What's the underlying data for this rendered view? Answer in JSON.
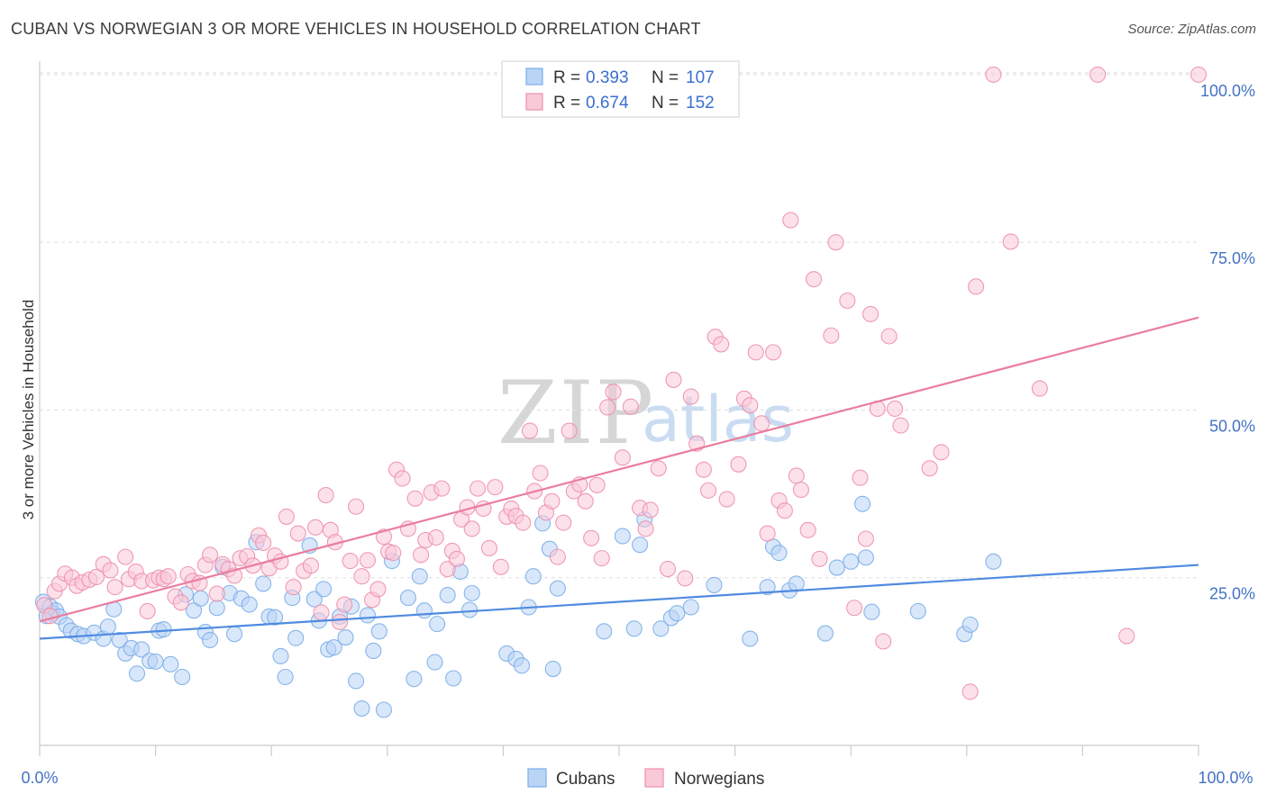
{
  "title": "CUBAN VS NORWEGIAN 3 OR MORE VEHICLES IN HOUSEHOLD CORRELATION CHART",
  "source": "Source: ZipAtlas.com",
  "watermark": {
    "zip": "ZIP",
    "atlas": "atlas"
  },
  "legend": {
    "r_label": "R =",
    "n_label": "N =",
    "entries": [
      {
        "name": "Cubans",
        "r": "0.393",
        "n": "107",
        "color": "#7baee8",
        "fill": "#b9d4f5"
      },
      {
        "name": "Norwegians",
        "r": "0.674",
        "n": "152",
        "color": "#ee8fab",
        "fill": "#f9c9d8"
      }
    ]
  },
  "chart_data": {
    "type": "scatter",
    "title": "CUBAN VS NORWEGIAN 3 OR MORE VEHICLES IN HOUSEHOLD CORRELATION CHART",
    "xlabel": "",
    "ylabel": "3 or more Vehicles in Household",
    "xlim": [
      0,
      100
    ],
    "ylim": [
      0,
      102
    ],
    "x_tick_labels": [
      "0.0%",
      "100.0%"
    ],
    "y_tick_labels": [
      "25.0%",
      "50.0%",
      "75.0%",
      "100.0%"
    ],
    "y_ticks": [
      25,
      50,
      75,
      100
    ],
    "series": [
      {
        "name": "Cubans",
        "color": "#4f8be0",
        "trend": {
          "x0": 0,
          "y0": 15.9,
          "x1": 100,
          "y1": 26.9
        },
        "points": [
          [
            0.3,
            21.4
          ],
          [
            0.6,
            19.3
          ],
          [
            0.9,
            20.7
          ],
          [
            1.1,
            19.7
          ],
          [
            1.4,
            20.1
          ],
          [
            1.7,
            19.2
          ],
          [
            2.3,
            17.9
          ],
          [
            2.7,
            17.1
          ],
          [
            3.3,
            16.6
          ],
          [
            3.8,
            16.3
          ],
          [
            4.7,
            16.8
          ],
          [
            5.5,
            15.9
          ],
          [
            5.9,
            17.7
          ],
          [
            6.4,
            20.3
          ],
          [
            6.9,
            15.7
          ],
          [
            7.4,
            13.7
          ],
          [
            7.9,
            14.5
          ],
          [
            8.4,
            10.7
          ],
          [
            8.8,
            14.3
          ],
          [
            9.5,
            12.6
          ],
          [
            10.0,
            12.5
          ],
          [
            10.3,
            17.1
          ],
          [
            10.7,
            17.3
          ],
          [
            11.3,
            12.1
          ],
          [
            12.3,
            10.2
          ],
          [
            12.6,
            22.5
          ],
          [
            13.3,
            20.1
          ],
          [
            13.9,
            21.9
          ],
          [
            14.3,
            16.9
          ],
          [
            14.7,
            15.7
          ],
          [
            15.3,
            20.5
          ],
          [
            15.8,
            26.6
          ],
          [
            16.4,
            22.7
          ],
          [
            16.8,
            16.6
          ],
          [
            17.4,
            21.9
          ],
          [
            18.1,
            21.0
          ],
          [
            18.7,
            30.3
          ],
          [
            19.3,
            24.1
          ],
          [
            19.8,
            19.2
          ],
          [
            20.3,
            19.1
          ],
          [
            20.8,
            13.3
          ],
          [
            21.2,
            10.2
          ],
          [
            21.8,
            22.0
          ],
          [
            22.1,
            16.0
          ],
          [
            23.3,
            29.8
          ],
          [
            23.7,
            21.8
          ],
          [
            24.1,
            18.6
          ],
          [
            24.5,
            23.3
          ],
          [
            24.9,
            14.3
          ],
          [
            25.4,
            14.6
          ],
          [
            25.9,
            19.2
          ],
          [
            26.4,
            16.1
          ],
          [
            26.9,
            20.7
          ],
          [
            27.3,
            9.6
          ],
          [
            27.8,
            5.5
          ],
          [
            28.3,
            19.4
          ],
          [
            28.8,
            14.1
          ],
          [
            29.3,
            17.0
          ],
          [
            29.7,
            5.3
          ],
          [
            30.4,
            27.5
          ],
          [
            31.8,
            22.0
          ],
          [
            32.3,
            9.9
          ],
          [
            32.8,
            25.2
          ],
          [
            33.2,
            20.1
          ],
          [
            34.1,
            12.4
          ],
          [
            34.3,
            18.1
          ],
          [
            35.2,
            22.4
          ],
          [
            35.7,
            10.0
          ],
          [
            36.3,
            25.9
          ],
          [
            37.1,
            20.2
          ],
          [
            37.3,
            22.7
          ],
          [
            40.3,
            13.7
          ],
          [
            41.1,
            12.9
          ],
          [
            41.6,
            11.9
          ],
          [
            42.2,
            20.6
          ],
          [
            42.6,
            25.2
          ],
          [
            43.4,
            33.1
          ],
          [
            44.0,
            29.3
          ],
          [
            44.3,
            11.4
          ],
          [
            44.7,
            23.4
          ],
          [
            48.7,
            17.0
          ],
          [
            50.3,
            31.2
          ],
          [
            51.3,
            17.4
          ],
          [
            51.8,
            29.9
          ],
          [
            52.2,
            33.7
          ],
          [
            53.6,
            17.4
          ],
          [
            54.5,
            19.0
          ],
          [
            55.0,
            19.7
          ],
          [
            56.2,
            20.6
          ],
          [
            58.2,
            23.9
          ],
          [
            61.3,
            15.9
          ],
          [
            62.8,
            23.6
          ],
          [
            63.3,
            29.6
          ],
          [
            63.8,
            28.7
          ],
          [
            64.7,
            23.1
          ],
          [
            65.3,
            24.1
          ],
          [
            67.8,
            16.7
          ],
          [
            68.8,
            26.5
          ],
          [
            70.0,
            27.4
          ],
          [
            71.0,
            36.0
          ],
          [
            71.3,
            28.0
          ],
          [
            71.8,
            19.9
          ],
          [
            75.8,
            20.0
          ],
          [
            79.8,
            16.6
          ],
          [
            80.3,
            18.0
          ],
          [
            82.3,
            27.4
          ]
        ]
      },
      {
        "name": "Norwegians",
        "color": "#ea7d9f",
        "trend": {
          "x0": 0,
          "y0": 18.5,
          "x1": 100,
          "y1": 63.8
        },
        "points": [
          [
            0.4,
            20.9
          ],
          [
            0.9,
            19.3
          ],
          [
            1.3,
            23.0
          ],
          [
            1.7,
            24.1
          ],
          [
            2.2,
            25.6
          ],
          [
            2.8,
            25.0
          ],
          [
            3.2,
            23.8
          ],
          [
            3.7,
            24.3
          ],
          [
            4.3,
            24.7
          ],
          [
            4.9,
            25.1
          ],
          [
            5.5,
            27.0
          ],
          [
            6.1,
            26.1
          ],
          [
            6.5,
            23.6
          ],
          [
            7.4,
            28.1
          ],
          [
            7.7,
            24.8
          ],
          [
            8.3,
            25.9
          ],
          [
            8.8,
            24.5
          ],
          [
            9.3,
            20.0
          ],
          [
            9.8,
            24.6
          ],
          [
            10.3,
            25.0
          ],
          [
            10.7,
            24.8
          ],
          [
            11.1,
            25.2
          ],
          [
            11.7,
            22.2
          ],
          [
            12.2,
            21.3
          ],
          [
            12.8,
            25.5
          ],
          [
            13.2,
            24.5
          ],
          [
            13.8,
            24.2
          ],
          [
            14.3,
            26.9
          ],
          [
            14.7,
            28.4
          ],
          [
            15.3,
            22.6
          ],
          [
            15.8,
            27.0
          ],
          [
            16.3,
            26.3
          ],
          [
            16.8,
            25.3
          ],
          [
            17.3,
            27.9
          ],
          [
            17.9,
            28.2
          ],
          [
            18.4,
            26.8
          ],
          [
            18.9,
            31.3
          ],
          [
            19.3,
            30.2
          ],
          [
            19.8,
            26.4
          ],
          [
            20.3,
            28.3
          ],
          [
            20.8,
            27.4
          ],
          [
            21.3,
            34.1
          ],
          [
            21.9,
            23.6
          ],
          [
            22.3,
            31.6
          ],
          [
            22.8,
            26.0
          ],
          [
            23.4,
            26.8
          ],
          [
            23.8,
            32.5
          ],
          [
            24.3,
            19.8
          ],
          [
            24.7,
            37.3
          ],
          [
            25.1,
            32.1
          ],
          [
            25.5,
            30.3
          ],
          [
            25.9,
            18.4
          ],
          [
            26.3,
            21.0
          ],
          [
            26.8,
            27.5
          ],
          [
            27.3,
            35.6
          ],
          [
            27.8,
            25.2
          ],
          [
            28.3,
            27.6
          ],
          [
            28.7,
            21.7
          ],
          [
            29.2,
            23.3
          ],
          [
            29.7,
            31.1
          ],
          [
            30.1,
            28.9
          ],
          [
            30.5,
            28.7
          ],
          [
            30.8,
            41.1
          ],
          [
            31.3,
            39.8
          ],
          [
            31.8,
            32.3
          ],
          [
            32.4,
            36.8
          ],
          [
            32.9,
            28.4
          ],
          [
            33.3,
            30.6
          ],
          [
            33.8,
            37.7
          ],
          [
            34.2,
            31.0
          ],
          [
            34.7,
            38.3
          ],
          [
            35.2,
            26.3
          ],
          [
            35.6,
            29.0
          ],
          [
            36.0,
            27.8
          ],
          [
            36.4,
            33.7
          ],
          [
            36.9,
            35.5
          ],
          [
            37.3,
            32.3
          ],
          [
            37.8,
            38.3
          ],
          [
            38.3,
            35.3
          ],
          [
            38.8,
            29.4
          ],
          [
            39.3,
            38.5
          ],
          [
            39.8,
            26.6
          ],
          [
            40.3,
            34.1
          ],
          [
            40.7,
            35.3
          ],
          [
            41.1,
            34.2
          ],
          [
            41.7,
            33.2
          ],
          [
            42.3,
            46.9
          ],
          [
            42.7,
            37.9
          ],
          [
            43.2,
            40.6
          ],
          [
            43.7,
            34.7
          ],
          [
            44.2,
            36.4
          ],
          [
            44.7,
            28.1
          ],
          [
            45.2,
            33.2
          ],
          [
            45.7,
            46.9
          ],
          [
            46.1,
            37.9
          ],
          [
            46.6,
            38.9
          ],
          [
            47.1,
            36.4
          ],
          [
            47.6,
            30.9
          ],
          [
            48.1,
            38.8
          ],
          [
            48.5,
            27.9
          ],
          [
            49.0,
            50.4
          ],
          [
            49.5,
            52.7
          ],
          [
            50.3,
            42.9
          ],
          [
            51.0,
            50.5
          ],
          [
            51.8,
            35.4
          ],
          [
            52.3,
            32.3
          ],
          [
            52.7,
            35.1
          ],
          [
            53.4,
            41.3
          ],
          [
            54.2,
            26.3
          ],
          [
            54.7,
            54.5
          ],
          [
            55.7,
            24.9
          ],
          [
            56.2,
            52.0
          ],
          [
            56.7,
            45.0
          ],
          [
            57.3,
            41.1
          ],
          [
            57.7,
            38.0
          ],
          [
            58.3,
            60.9
          ],
          [
            58.8,
            59.8
          ],
          [
            59.3,
            36.7
          ],
          [
            60.3,
            41.9
          ],
          [
            60.8,
            51.7
          ],
          [
            61.3,
            50.7
          ],
          [
            61.8,
            58.6
          ],
          [
            62.3,
            48.0
          ],
          [
            62.8,
            31.6
          ],
          [
            63.3,
            58.6
          ],
          [
            63.8,
            36.5
          ],
          [
            64.3,
            35.0
          ],
          [
            64.8,
            78.3
          ],
          [
            65.3,
            40.2
          ],
          [
            65.7,
            38.1
          ],
          [
            66.3,
            32.1
          ],
          [
            66.8,
            69.5
          ],
          [
            67.3,
            27.8
          ],
          [
            68.3,
            61.1
          ],
          [
            68.7,
            75.0
          ],
          [
            69.7,
            66.3
          ],
          [
            70.3,
            20.5
          ],
          [
            70.8,
            39.9
          ],
          [
            71.3,
            30.8
          ],
          [
            71.7,
            64.3
          ],
          [
            72.3,
            50.2
          ],
          [
            72.8,
            15.5
          ],
          [
            73.3,
            61.0
          ],
          [
            73.8,
            50.2
          ],
          [
            74.3,
            47.7
          ],
          [
            76.8,
            41.3
          ],
          [
            77.8,
            43.7
          ],
          [
            80.3,
            8.0
          ],
          [
            80.8,
            68.4
          ],
          [
            82.3,
            100
          ],
          [
            83.8,
            75.1
          ],
          [
            86.3,
            53.2
          ],
          [
            91.3,
            100
          ],
          [
            93.8,
            16.3
          ],
          [
            100,
            100
          ]
        ]
      }
    ]
  }
}
